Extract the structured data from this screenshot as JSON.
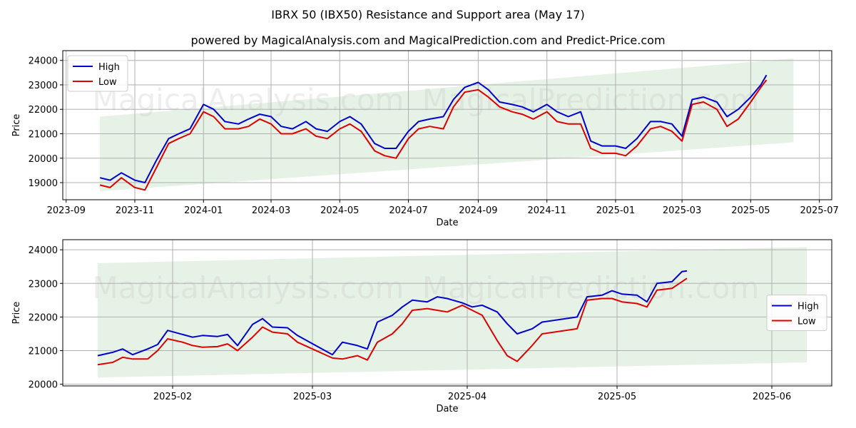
{
  "title": "IBRX 50 (IBX50) Resistance and Support area (May 17)",
  "subtitle": "powered by MagicalAnalysis.com and MagicalPrediction.com and Predict-Price.com",
  "watermarks": [
    "MagicalAnalysis.com",
    "MagicalPrediction.com"
  ],
  "colors": {
    "high": "#0000cc",
    "low": "#dd0000",
    "band": "#e6f2e6",
    "grid": "#b0b0b0"
  },
  "chart_data": [
    {
      "type": "line",
      "xlabel": "Date",
      "ylabel": "Price",
      "legend": "top-left",
      "grid": true,
      "xlim": [
        "2023-08-29",
        "2025-07-12"
      ],
      "ylim": [
        18300,
        24400
      ],
      "xticks": [
        {
          "date": "2023-09-01",
          "label": "2023-09"
        },
        {
          "date": "2023-11-01",
          "label": "2023-11"
        },
        {
          "date": "2024-01-01",
          "label": "2024-01"
        },
        {
          "date": "2024-03-01",
          "label": "2024-03"
        },
        {
          "date": "2024-05-01",
          "label": "2024-05"
        },
        {
          "date": "2024-07-01",
          "label": "2024-07"
        },
        {
          "date": "2024-09-01",
          "label": "2024-09"
        },
        {
          "date": "2024-11-01",
          "label": "2024-11"
        },
        {
          "date": "2025-01-01",
          "label": "2025-01"
        },
        {
          "date": "2025-03-01",
          "label": "2025-03"
        },
        {
          "date": "2025-05-01",
          "label": "2025-05"
        },
        {
          "date": "2025-07-01",
          "label": "2025-07"
        }
      ],
      "yticks": [
        19000,
        20000,
        21000,
        22000,
        23000,
        24000
      ],
      "band": {
        "x": [
          "2023-10-01",
          "2025-06-08"
        ],
        "upper": [
          21700,
          24080
        ],
        "lower": [
          18650,
          20650
        ]
      },
      "x": [
        "2023-10-01",
        "2023-10-10",
        "2023-10-20",
        "2023-11-01",
        "2023-11-10",
        "2023-11-20",
        "2023-12-01",
        "2023-12-10",
        "2023-12-20",
        "2024-01-01",
        "2024-01-10",
        "2024-01-20",
        "2024-02-01",
        "2024-02-10",
        "2024-02-20",
        "2024-03-01",
        "2024-03-10",
        "2024-03-20",
        "2024-04-01",
        "2024-04-10",
        "2024-04-20",
        "2024-05-01",
        "2024-05-10",
        "2024-05-20",
        "2024-06-01",
        "2024-06-10",
        "2024-06-20",
        "2024-07-01",
        "2024-07-10",
        "2024-07-20",
        "2024-08-01",
        "2024-08-10",
        "2024-08-20",
        "2024-09-01",
        "2024-09-10",
        "2024-09-20",
        "2024-10-01",
        "2024-10-10",
        "2024-10-20",
        "2024-11-01",
        "2024-11-10",
        "2024-11-20",
        "2024-12-01",
        "2024-12-10",
        "2024-12-20",
        "2025-01-01",
        "2025-01-10",
        "2025-01-20",
        "2025-02-01",
        "2025-02-10",
        "2025-02-20",
        "2025-03-01",
        "2025-03-10",
        "2025-03-20",
        "2025-04-01",
        "2025-04-10",
        "2025-04-20",
        "2025-05-01",
        "2025-05-10",
        "2025-05-15"
      ],
      "series": [
        {
          "name": "High",
          "values": [
            19200,
            19100,
            19400,
            19100,
            19000,
            19900,
            20800,
            21000,
            21200,
            22200,
            22000,
            21500,
            21400,
            21600,
            21800,
            21700,
            21300,
            21200,
            21500,
            21200,
            21100,
            21500,
            21700,
            21400,
            20600,
            20400,
            20400,
            21100,
            21500,
            21600,
            21700,
            22400,
            22900,
            23100,
            22800,
            22300,
            22200,
            22100,
            21900,
            22200,
            21900,
            21700,
            21900,
            20700,
            20500,
            20500,
            20400,
            20800,
            21500,
            21500,
            21400,
            20900,
            22400,
            22500,
            22300,
            21700,
            22000,
            22500,
            23000,
            23400
          ]
        },
        {
          "name": "Low",
          "values": [
            18900,
            18800,
            19200,
            18800,
            18700,
            19600,
            20600,
            20800,
            21000,
            21900,
            21700,
            21200,
            21200,
            21300,
            21600,
            21400,
            21000,
            21000,
            21200,
            20900,
            20800,
            21200,
            21400,
            21100,
            20300,
            20100,
            20000,
            20800,
            21200,
            21300,
            21200,
            22100,
            22700,
            22800,
            22500,
            22100,
            21900,
            21800,
            21600,
            21900,
            21500,
            21400,
            21400,
            20400,
            20200,
            20200,
            20100,
            20500,
            21200,
            21300,
            21100,
            20700,
            22200,
            22300,
            22000,
            21300,
            21600,
            22300,
            22900,
            23200
          ]
        }
      ]
    },
    {
      "type": "line",
      "xlabel": "Date",
      "ylabel": "Price",
      "legend": "center-right",
      "grid": true,
      "xlim": [
        "2025-01-10",
        "2025-06-13"
      ],
      "ylim": [
        19950,
        24300
      ],
      "xticks": [
        {
          "date": "2025-02-01",
          "label": "2025-02"
        },
        {
          "date": "2025-03-01",
          "label": "2025-03"
        },
        {
          "date": "2025-04-01",
          "label": "2025-04"
        },
        {
          "date": "2025-05-01",
          "label": "2025-05"
        },
        {
          "date": "2025-06-01",
          "label": "2025-06"
        }
      ],
      "yticks": [
        20000,
        21000,
        22000,
        23000,
        24000
      ],
      "band": {
        "x": [
          "2025-01-17",
          "2025-06-08"
        ],
        "upper": [
          23600,
          24080
        ],
        "lower": [
          20200,
          20650
        ]
      },
      "x": [
        "2025-01-17",
        "2025-01-20",
        "2025-01-22",
        "2025-01-24",
        "2025-01-27",
        "2025-01-29",
        "2025-01-31",
        "2025-02-03",
        "2025-02-05",
        "2025-02-07",
        "2025-02-10",
        "2025-02-12",
        "2025-02-14",
        "2025-02-17",
        "2025-02-19",
        "2025-02-21",
        "2025-02-24",
        "2025-02-26",
        "2025-03-05",
        "2025-03-07",
        "2025-03-10",
        "2025-03-12",
        "2025-03-14",
        "2025-03-17",
        "2025-03-19",
        "2025-03-21",
        "2025-03-24",
        "2025-03-26",
        "2025-03-28",
        "2025-03-31",
        "2025-04-02",
        "2025-04-04",
        "2025-04-07",
        "2025-04-09",
        "2025-04-11",
        "2025-04-14",
        "2025-04-16",
        "2025-04-23",
        "2025-04-25",
        "2025-04-28",
        "2025-04-30",
        "2025-05-02",
        "2025-05-05",
        "2025-05-07",
        "2025-05-09",
        "2025-05-12",
        "2025-05-14",
        "2025-05-15"
      ],
      "series": [
        {
          "name": "High",
          "values": [
            20850,
            20950,
            21050,
            20880,
            21050,
            21180,
            21600,
            21480,
            21400,
            21450,
            21420,
            21480,
            21150,
            21780,
            21950,
            21700,
            21680,
            21450,
            20880,
            21250,
            21150,
            21050,
            21850,
            22050,
            22300,
            22500,
            22450,
            22600,
            22550,
            22420,
            22300,
            22350,
            22150,
            21800,
            21500,
            21650,
            21850,
            22000,
            22600,
            22650,
            22780,
            22680,
            22650,
            22450,
            23000,
            23050,
            23350,
            23370
          ]
        },
        {
          "name": "Low",
          "values": [
            20580,
            20650,
            20800,
            20750,
            20750,
            21000,
            21350,
            21250,
            21150,
            21100,
            21120,
            21200,
            21000,
            21400,
            21700,
            21550,
            21500,
            21250,
            20780,
            20750,
            20850,
            20720,
            21250,
            21500,
            21800,
            22200,
            22250,
            22200,
            22150,
            22350,
            22200,
            22050,
            21300,
            20850,
            20680,
            21150,
            21500,
            21650,
            22500,
            22550,
            22550,
            22450,
            22400,
            22300,
            22800,
            22850,
            23050,
            23150
          ]
        }
      ]
    }
  ]
}
